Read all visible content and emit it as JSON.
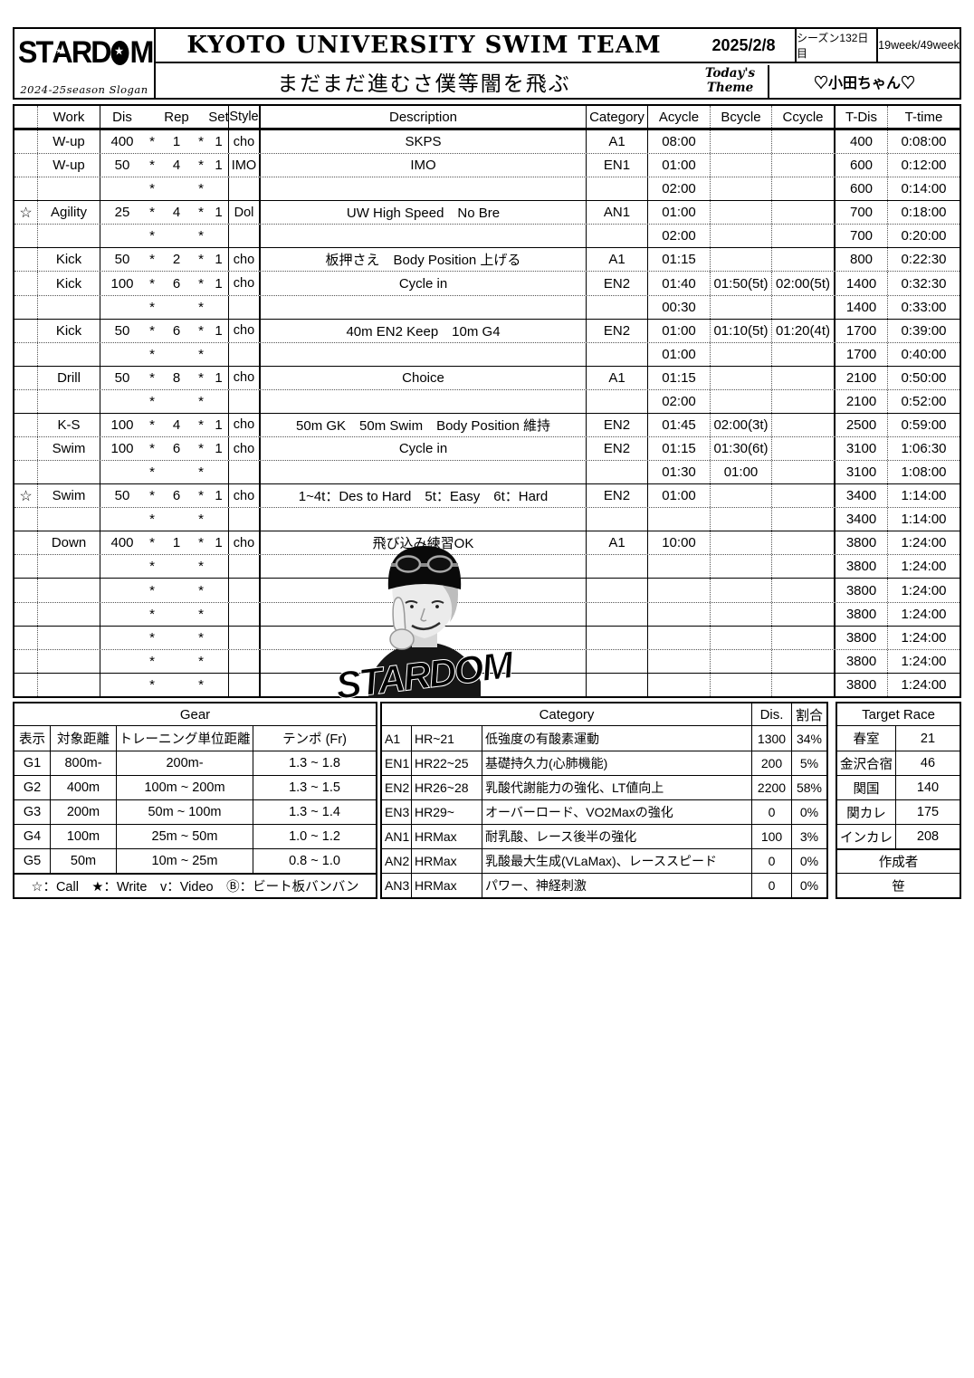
{
  "header": {
    "logo": {
      "part1": "ST",
      "letter_a": "A",
      "part2": "RD",
      "letter_m": "M",
      "star": "★"
    },
    "logo_sub": "2024-25season Slogan",
    "title": "KYOTO UNIVERSITY SWIM TEAM",
    "slogan": "まだまだ進むさ僕等闇を飛ぶ",
    "date": "2025/2/8",
    "season_day": "シーズン132日目",
    "week": "19week/49week",
    "theme_label_line1": "Today's",
    "theme_label_line2": "Theme",
    "theme_value": "♡小田ちゃん♡"
  },
  "symbols": {
    "asterisk": "*"
  },
  "watermark": {
    "label": "STARDOM"
  },
  "main_table": {
    "columns": {
      "work": "Work",
      "dis": "Dis",
      "rep": "Rep",
      "set": "Set",
      "style": "Style",
      "desc": "Description",
      "cat": "Category",
      "a": "Acycle",
      "b": "Bcycle",
      "c": "Ccycle",
      "tdis": "T-Dis",
      "ttime": "T-time"
    },
    "rows": [
      {
        "mark": "",
        "work": "W-up",
        "dis": "400",
        "rep": "1",
        "set": "1",
        "style": "cho",
        "desc": "SKPS",
        "cat": "A1",
        "a": "08:00",
        "b": "",
        "c": "",
        "tdis": "400",
        "ttime": "0:08:00",
        "border": "solid"
      },
      {
        "mark": "",
        "work": "W-up",
        "dis": "50",
        "rep": "4",
        "set": "1",
        "style": "IMO",
        "desc": "IMO",
        "cat": "EN1",
        "a": "01:00",
        "b": "",
        "c": "",
        "tdis": "600",
        "ttime": "0:12:00",
        "border": "dotted"
      },
      {
        "mark": "",
        "work": "",
        "dis": "",
        "rep": "",
        "set": "",
        "style": "",
        "desc": "",
        "cat": "",
        "a": "02:00",
        "b": "",
        "c": "",
        "tdis": "600",
        "ttime": "0:14:00",
        "border": "dotted"
      },
      {
        "mark": "☆",
        "work": "Agility",
        "dis": "25",
        "rep": "4",
        "set": "1",
        "style": "Dol",
        "desc": "UW High Speed　No Bre",
        "cat": "AN1",
        "a": "01:00",
        "b": "",
        "c": "",
        "tdis": "700",
        "ttime": "0:18:00",
        "border": "solid"
      },
      {
        "mark": "",
        "work": "",
        "dis": "",
        "rep": "",
        "set": "",
        "style": "",
        "desc": "",
        "cat": "",
        "a": "02:00",
        "b": "",
        "c": "",
        "tdis": "700",
        "ttime": "0:20:00",
        "border": "dotted"
      },
      {
        "mark": "",
        "work": "Kick",
        "dis": "50",
        "rep": "2",
        "set": "1",
        "style": "cho",
        "desc": "板押さえ　Body Position 上げる",
        "cat": "A1",
        "a": "01:15",
        "b": "",
        "c": "",
        "tdis": "800",
        "ttime": "0:22:30",
        "border": "solid"
      },
      {
        "mark": "",
        "work": "Kick",
        "dis": "100",
        "rep": "6",
        "set": "1",
        "style": "cho",
        "desc": "Cycle in",
        "cat": "EN2",
        "a": "01:40",
        "b": "01:50(5t)",
        "c": "02:00(5t)",
        "tdis": "1400",
        "ttime": "0:32:30",
        "border": "dotted"
      },
      {
        "mark": "",
        "work": "",
        "dis": "",
        "rep": "",
        "set": "",
        "style": "",
        "desc": "",
        "cat": "",
        "a": "00:30",
        "b": "",
        "c": "",
        "tdis": "1400",
        "ttime": "0:33:00",
        "border": "dotted"
      },
      {
        "mark": "",
        "work": "Kick",
        "dis": "50",
        "rep": "6",
        "set": "1",
        "style": "cho",
        "desc": "40m EN2 Keep　10m G4",
        "cat": "EN2",
        "a": "01:00",
        "b": "01:10(5t)",
        "c": "01:20(4t)",
        "tdis": "1700",
        "ttime": "0:39:00",
        "border": "solid"
      },
      {
        "mark": "",
        "work": "",
        "dis": "",
        "rep": "",
        "set": "",
        "style": "",
        "desc": "",
        "cat": "",
        "a": "01:00",
        "b": "",
        "c": "",
        "tdis": "1700",
        "ttime": "0:40:00",
        "border": "dotted"
      },
      {
        "mark": "",
        "work": "Drill",
        "dis": "50",
        "rep": "8",
        "set": "1",
        "style": "cho",
        "desc": "Choice",
        "cat": "A1",
        "a": "01:15",
        "b": "",
        "c": "",
        "tdis": "2100",
        "ttime": "0:50:00",
        "border": "solid"
      },
      {
        "mark": "",
        "work": "",
        "dis": "",
        "rep": "",
        "set": "",
        "style": "",
        "desc": "",
        "cat": "",
        "a": "02:00",
        "b": "",
        "c": "",
        "tdis": "2100",
        "ttime": "0:52:00",
        "border": "dotted"
      },
      {
        "mark": "",
        "work": "K-S",
        "dis": "100",
        "rep": "4",
        "set": "1",
        "style": "cho",
        "desc": "50m GK　50m Swim　Body Position 維持",
        "cat": "EN2",
        "a": "01:45",
        "b": "02:00(3t)",
        "c": "",
        "tdis": "2500",
        "ttime": "0:59:00",
        "border": "solid"
      },
      {
        "mark": "",
        "work": "Swim",
        "dis": "100",
        "rep": "6",
        "set": "1",
        "style": "cho",
        "desc": "Cycle in",
        "cat": "EN2",
        "a": "01:15",
        "b": "01:30(6t)",
        "c": "",
        "tdis": "3100",
        "ttime": "1:06:30",
        "border": "dotted"
      },
      {
        "mark": "",
        "work": "",
        "dis": "",
        "rep": "",
        "set": "",
        "style": "",
        "desc": "",
        "cat": "",
        "a": "01:30",
        "b": "01:00",
        "c": "",
        "tdis": "3100",
        "ttime": "1:08:00",
        "border": "dotted"
      },
      {
        "mark": "☆",
        "work": "Swim",
        "dis": "50",
        "rep": "6",
        "set": "1",
        "style": "cho",
        "desc": "1~4t：Des to Hard　5t：Easy　6t：Hard",
        "cat": "EN2",
        "a": "01:00",
        "b": "",
        "c": "",
        "tdis": "3400",
        "ttime": "1:14:00",
        "border": "solid"
      },
      {
        "mark": "",
        "work": "",
        "dis": "",
        "rep": "",
        "set": "",
        "style": "",
        "desc": "",
        "cat": "",
        "a": "",
        "b": "",
        "c": "",
        "tdis": "3400",
        "ttime": "1:14:00",
        "border": "dotted"
      },
      {
        "mark": "",
        "work": "Down",
        "dis": "400",
        "rep": "1",
        "set": "1",
        "style": "cho",
        "desc": "飛び込み練習OK",
        "cat": "A1",
        "a": "10:00",
        "b": "",
        "c": "",
        "tdis": "3800",
        "ttime": "1:24:00",
        "border": "solid"
      },
      {
        "mark": "",
        "work": "",
        "dis": "",
        "rep": "",
        "set": "",
        "style": "",
        "desc": "",
        "cat": "",
        "a": "",
        "b": "",
        "c": "",
        "tdis": "3800",
        "ttime": "1:24:00",
        "border": "dotted"
      },
      {
        "mark": "",
        "work": "",
        "dis": "",
        "rep": "",
        "set": "",
        "style": "",
        "desc": "",
        "cat": "",
        "a": "",
        "b": "",
        "c": "",
        "tdis": "3800",
        "ttime": "1:24:00",
        "border": "solid"
      },
      {
        "mark": "",
        "work": "",
        "dis": "",
        "rep": "",
        "set": "",
        "style": "",
        "desc": "",
        "cat": "",
        "a": "",
        "b": "",
        "c": "",
        "tdis": "3800",
        "ttime": "1:24:00",
        "border": "dotted"
      },
      {
        "mark": "",
        "work": "",
        "dis": "",
        "rep": "",
        "set": "",
        "style": "",
        "desc": "",
        "cat": "",
        "a": "",
        "b": "",
        "c": "",
        "tdis": "3800",
        "ttime": "1:24:00",
        "border": "solid"
      },
      {
        "mark": "",
        "work": "",
        "dis": "",
        "rep": "",
        "set": "",
        "style": "",
        "desc": "",
        "cat": "",
        "a": "",
        "b": "",
        "c": "",
        "tdis": "3800",
        "ttime": "1:24:00",
        "border": "dotted"
      },
      {
        "mark": "",
        "work": "",
        "dis": "",
        "rep": "",
        "set": "",
        "style": "",
        "desc": "",
        "cat": "",
        "a": "",
        "b": "",
        "c": "",
        "tdis": "3800",
        "ttime": "1:24:00",
        "border": "solid"
      }
    ]
  },
  "gear": {
    "title": "Gear",
    "headers": [
      "表示",
      "対象距離",
      "トレーニング単位距離",
      "テンポ (Fr)"
    ],
    "rows": [
      [
        "G1",
        "800m-",
        "200m-",
        "1.3 ~ 1.8"
      ],
      [
        "G2",
        "400m",
        "100m ~ 200m",
        "1.3 ~ 1.5"
      ],
      [
        "G3",
        "200m",
        "50m ~ 100m",
        "1.3 ~ 1.4"
      ],
      [
        "G4",
        "100m",
        "25m ~ 50m",
        "1.0 ~ 1.2"
      ],
      [
        "G5",
        "50m",
        "10m ~ 25m",
        "0.8 ~ 1.0"
      ]
    ],
    "legend": "☆：Call　★：Write　v：Video　Ⓑ：ビート板バンバン"
  },
  "category": {
    "title": "Category",
    "dis_header": "Dis.",
    "pct_header": "割合",
    "rows": [
      [
        "A1",
        "HR~21",
        "低強度の有酸素運動",
        "1300",
        "34%"
      ],
      [
        "EN1",
        "HR22~25",
        "基礎持久力(心肺機能)",
        "200",
        "5%"
      ],
      [
        "EN2",
        "HR26~28",
        "乳酸代謝能力の強化、LT値向上",
        "2200",
        "58%"
      ],
      [
        "EN3",
        "HR29~",
        "オーバーロード、VO2Maxの強化",
        "0",
        "0%"
      ],
      [
        "AN1",
        "HRMax",
        "耐乳酸、レース後半の強化",
        "100",
        "3%"
      ],
      [
        "AN2",
        "HRMax",
        "乳酸最大生成(VLaMax)、レーススピード",
        "0",
        "0%"
      ],
      [
        "AN3",
        "HRMax",
        "パワー、神経刺激",
        "0",
        "0%"
      ]
    ]
  },
  "target_race": {
    "title": "Target Race",
    "rows": [
      [
        "春室",
        "21"
      ],
      [
        "金沢合宿",
        "46"
      ],
      [
        "関国",
        "140"
      ],
      [
        "関カレ",
        "175"
      ],
      [
        "インカレ",
        "208"
      ]
    ],
    "author_label": "作成者",
    "author": "笹"
  }
}
